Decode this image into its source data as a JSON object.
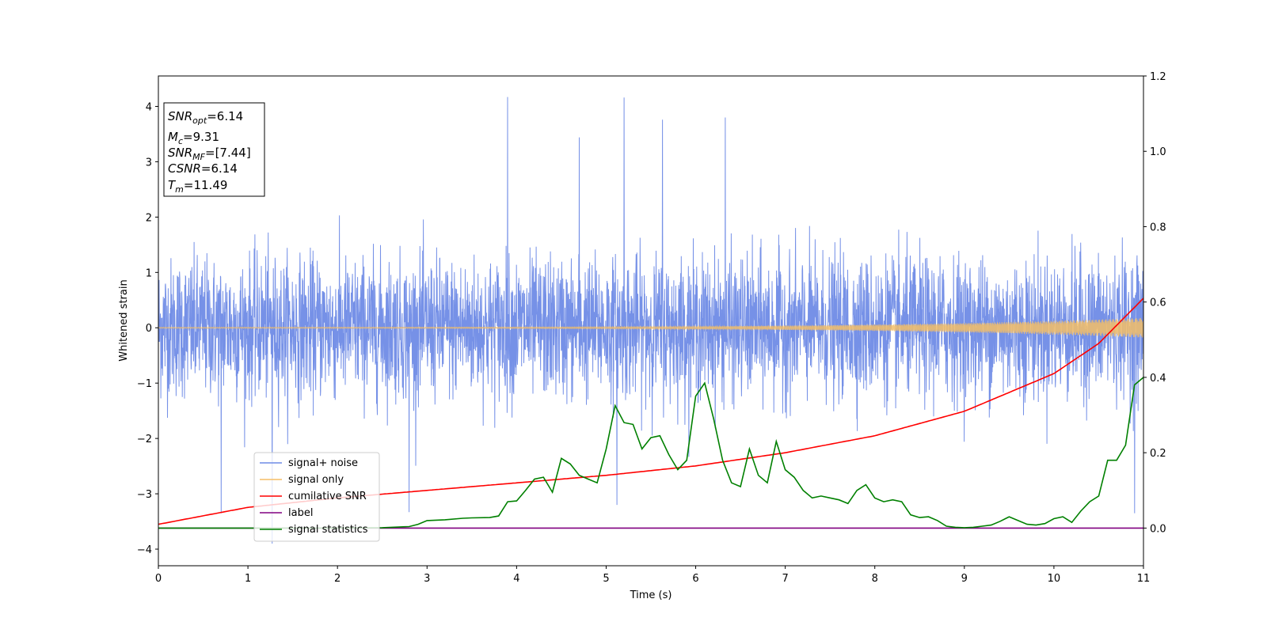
{
  "chart_data": {
    "type": "line",
    "xlabel": "Time (s)",
    "ylabel": "Whitened strain",
    "x_range": [
      0,
      11
    ],
    "y_left_range": [
      -4.3,
      4.55
    ],
    "y_right_range": [
      -0.1,
      1.2
    ],
    "x_ticks": [
      "0",
      "1",
      "2",
      "3",
      "4",
      "5",
      "6",
      "7",
      "8",
      "9",
      "10",
      "11"
    ],
    "y_left_ticks": [
      "4",
      "3",
      "2",
      "1",
      "0",
      "−1",
      "−2",
      "−3",
      "−4"
    ],
    "y_left_tick_values": [
      4,
      3,
      2,
      1,
      0,
      -1,
      -2,
      -3,
      -4
    ],
    "y_right_ticks": [
      "0.0",
      "0.2",
      "0.4",
      "0.6",
      "0.8",
      "1.0",
      "1.2"
    ],
    "y_right_tick_values": [
      0.0,
      0.2,
      0.4,
      0.6,
      0.8,
      1.0,
      1.2
    ],
    "grid": false,
    "legend_position": "lower-left",
    "info_box": {
      "snr_opt": {
        "main": "SNR",
        "sub": "opt",
        "value": "=6.14"
      },
      "mc": {
        "main": "M",
        "sub": "c",
        "value": "=9.31"
      },
      "snr_mf": {
        "main": "SNR",
        "sub": "MF",
        "value": "=[7.44]"
      },
      "csnr": {
        "main": "CSNR",
        "value": "=6.14"
      },
      "tm": {
        "main": "T",
        "sub": "m",
        "value": "=11.49"
      }
    },
    "series": [
      {
        "name": "signal+ noise",
        "axis": "left",
        "color": "#6f8be6",
        "kind": "noise",
        "envelope_approx": {
          "typical_range": [
            -1.6,
            1.9
          ],
          "max": 4.17,
          "min": -3.9
        },
        "spikes_approx": [
          {
            "x": 3.9,
            "y": 4.17
          },
          {
            "x": 5.2,
            "y": 4.16
          },
          {
            "x": 6.33,
            "y": 3.8
          },
          {
            "x": 5.63,
            "y": 3.76
          },
          {
            "x": 4.7,
            "y": 3.44
          },
          {
            "x": 10.9,
            "y": 3.12
          },
          {
            "x": 1.27,
            "y": -3.9
          },
          {
            "x": 5.12,
            "y": -3.2
          },
          {
            "x": 10.9,
            "y": -3.35
          },
          {
            "x": 0.7,
            "y": -3.35
          },
          {
            "x": 2.8,
            "y": -3.33
          }
        ]
      },
      {
        "name": "signal only",
        "axis": "left",
        "color": "#f5be66",
        "kind": "chirp",
        "amplitude_start": 0.01,
        "amplitude_end": 0.18
      },
      {
        "name": "cumilative SNR",
        "axis": "right",
        "color": "#ff0000",
        "x": [
          0,
          1,
          2,
          3,
          4,
          5,
          6,
          7,
          8,
          9,
          10,
          10.5,
          11
        ],
        "values": [
          0.01,
          0.055,
          0.08,
          0.1,
          0.12,
          0.14,
          0.165,
          0.2,
          0.245,
          0.31,
          0.41,
          0.49,
          0.61
        ]
      },
      {
        "name": "label",
        "axis": "right",
        "color": "#800080",
        "x": [
          0,
          11
        ],
        "values": [
          0.0,
          0.0
        ]
      },
      {
        "name": "signal statistics",
        "axis": "right",
        "color": "#008000",
        "x": [
          0,
          0.5,
          1.0,
          1.5,
          2.0,
          2.5,
          2.8,
          2.9,
          3.0,
          3.2,
          3.4,
          3.5,
          3.7,
          3.8,
          3.9,
          4.0,
          4.1,
          4.2,
          4.3,
          4.4,
          4.5,
          4.6,
          4.7,
          4.8,
          4.9,
          5.0,
          5.1,
          5.2,
          5.3,
          5.4,
          5.5,
          5.6,
          5.7,
          5.8,
          5.9,
          6.0,
          6.1,
          6.2,
          6.3,
          6.4,
          6.5,
          6.6,
          6.7,
          6.8,
          6.9,
          7.0,
          7.1,
          7.2,
          7.3,
          7.4,
          7.5,
          7.6,
          7.7,
          7.8,
          7.9,
          8.0,
          8.1,
          8.2,
          8.3,
          8.4,
          8.5,
          8.6,
          8.7,
          8.8,
          8.9,
          9.0,
          9.1,
          9.2,
          9.3,
          9.4,
          9.5,
          9.6,
          9.7,
          9.8,
          9.9,
          10.0,
          10.1,
          10.2,
          10.3,
          10.4,
          10.5,
          10.6,
          10.7,
          10.8,
          10.9,
          11.0
        ],
        "values": [
          0.0,
          0.0,
          0.0,
          0.0,
          0.0,
          0.001,
          0.004,
          0.01,
          0.02,
          0.022,
          0.026,
          0.027,
          0.028,
          0.032,
          0.07,
          0.072,
          0.1,
          0.13,
          0.135,
          0.095,
          0.185,
          0.17,
          0.14,
          0.13,
          0.12,
          0.21,
          0.325,
          0.28,
          0.275,
          0.21,
          0.24,
          0.245,
          0.195,
          0.155,
          0.18,
          0.35,
          0.385,
          0.29,
          0.18,
          0.12,
          0.11,
          0.21,
          0.14,
          0.12,
          0.23,
          0.155,
          0.135,
          0.1,
          0.08,
          0.085,
          0.08,
          0.075,
          0.065,
          0.1,
          0.115,
          0.08,
          0.07,
          0.075,
          0.07,
          0.035,
          0.028,
          0.03,
          0.02,
          0.005,
          0.002,
          0.001,
          0.002,
          0.005,
          0.008,
          0.018,
          0.03,
          0.02,
          0.01,
          0.008,
          0.012,
          0.025,
          0.03,
          0.015,
          0.045,
          0.07,
          0.085,
          0.18,
          0.18,
          0.22,
          0.38,
          0.4
        ]
      }
    ]
  }
}
